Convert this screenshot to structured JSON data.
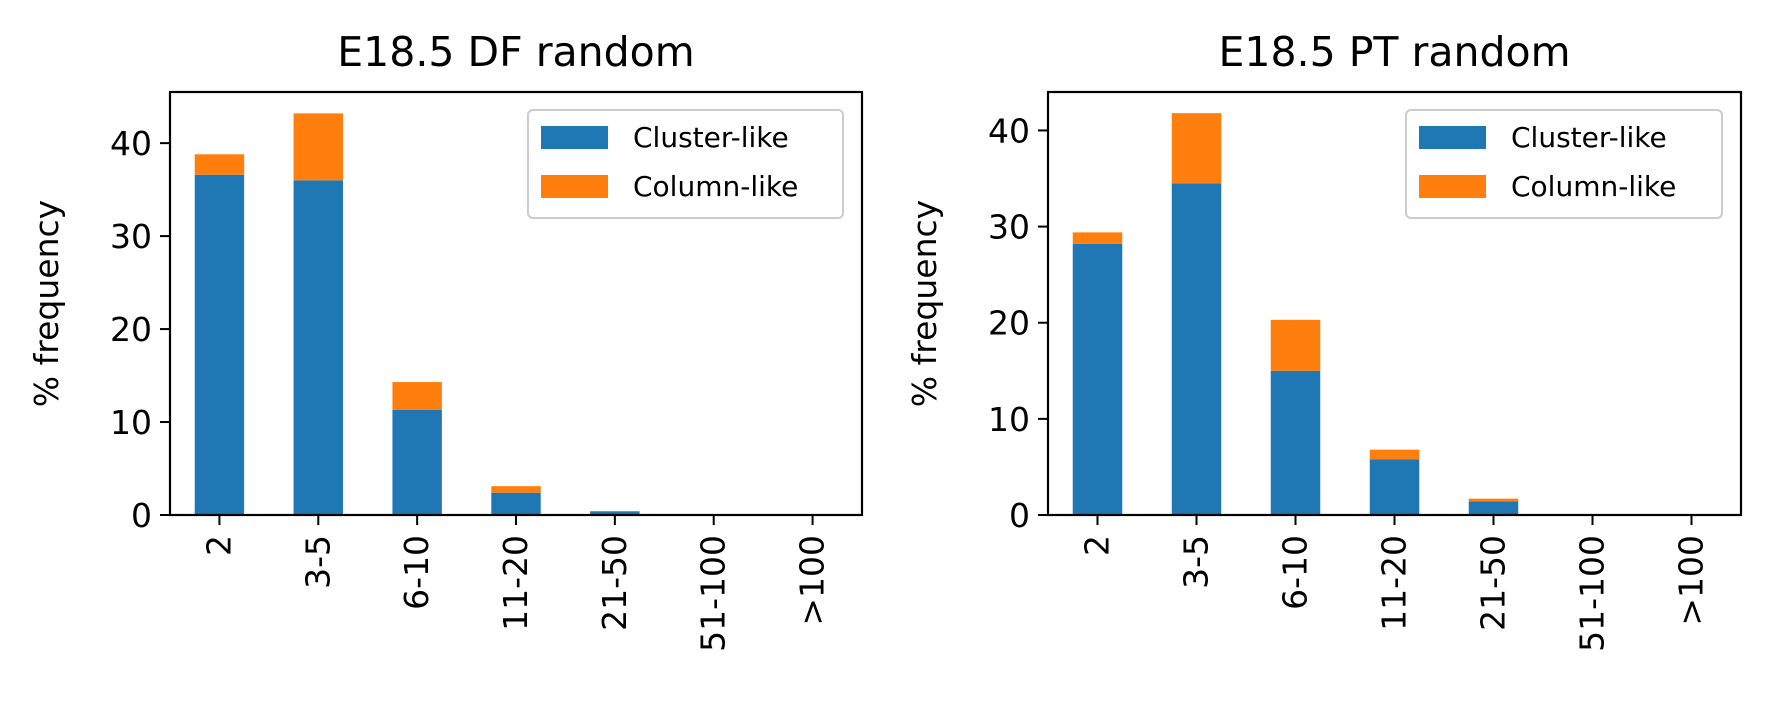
{
  "chart_data": [
    {
      "type": "bar",
      "stacked": true,
      "title": "E18.5 DF random",
      "xlabel": "",
      "ylabel": "% frequency",
      "categories": [
        "2",
        "3-5",
        "6-10",
        "11-20",
        "21-50",
        "51-100",
        ">100"
      ],
      "ylim": [
        0,
        45.5
      ],
      "yticks": [
        0,
        10,
        20,
        30,
        40
      ],
      "grid": false,
      "legend_position": "top-right",
      "series": [
        {
          "name": "Cluster-like",
          "color": "#1f77b4",
          "values": [
            36.6,
            36.0,
            11.3,
            2.4,
            0.4,
            0.0,
            0.0
          ]
        },
        {
          "name": "Column-like",
          "color": "#ff7f0e",
          "values": [
            2.2,
            7.2,
            3.0,
            0.7,
            0.0,
            0.0,
            0.0
          ]
        }
      ]
    },
    {
      "type": "bar",
      "stacked": true,
      "title": "E18.5 PT random",
      "xlabel": "",
      "ylabel": "% frequency",
      "categories": [
        "2",
        "3-5",
        "6-10",
        "11-20",
        "21-50",
        "51-100",
        ">100"
      ],
      "ylim": [
        0,
        44
      ],
      "yticks": [
        0,
        10,
        20,
        30,
        40
      ],
      "grid": false,
      "legend_position": "top-right",
      "series": [
        {
          "name": "Cluster-like",
          "color": "#1f77b4",
          "values": [
            28.2,
            34.5,
            15.0,
            5.8,
            1.4,
            0.0,
            0.0
          ]
        },
        {
          "name": "Column-like",
          "color": "#ff7f0e",
          "values": [
            1.2,
            7.3,
            5.3,
            1.0,
            0.3,
            0.0,
            0.0
          ]
        }
      ]
    }
  ]
}
